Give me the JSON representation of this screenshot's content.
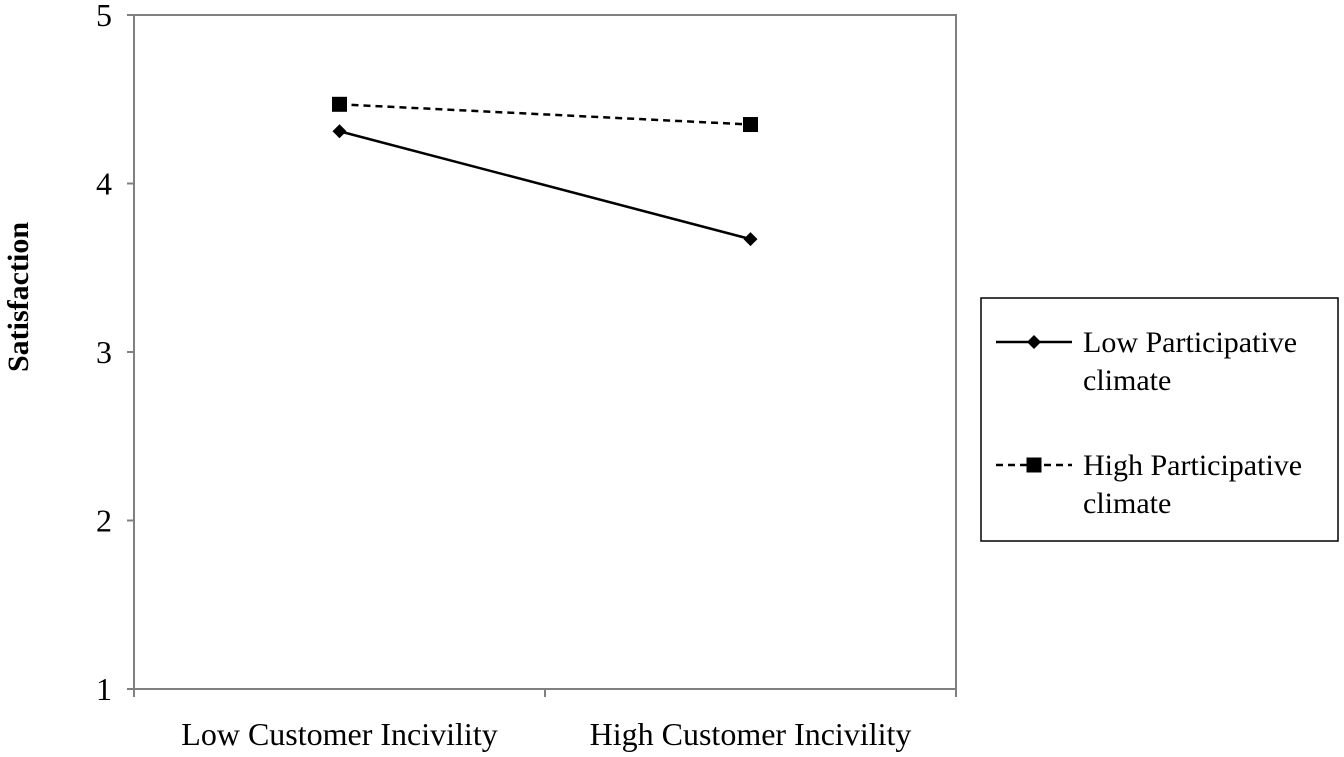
{
  "chart_data": {
    "type": "line",
    "ylabel": "Satisfaction",
    "xlabel": "",
    "categories": [
      "Low Customer Incivility",
      "High Customer Incivility"
    ],
    "ylim": [
      1,
      5
    ],
    "yticks": [
      "1",
      "2",
      "3",
      "4",
      "5"
    ],
    "grid": false,
    "legend_position": "right",
    "series": [
      {
        "name_lines": [
          "Low Participative",
          "climate"
        ],
        "values": [
          4.31,
          3.67
        ],
        "line_style": "solid",
        "marker": "diamond",
        "color": "#000000"
      },
      {
        "name_lines": [
          "High Participative",
          "climate"
        ],
        "values": [
          4.47,
          4.35
        ],
        "line_style": "dashed",
        "marker": "square",
        "color": "#000000"
      }
    ]
  },
  "colors": {
    "frame": "#808080",
    "ink": "#000000",
    "background": "#ffffff"
  }
}
